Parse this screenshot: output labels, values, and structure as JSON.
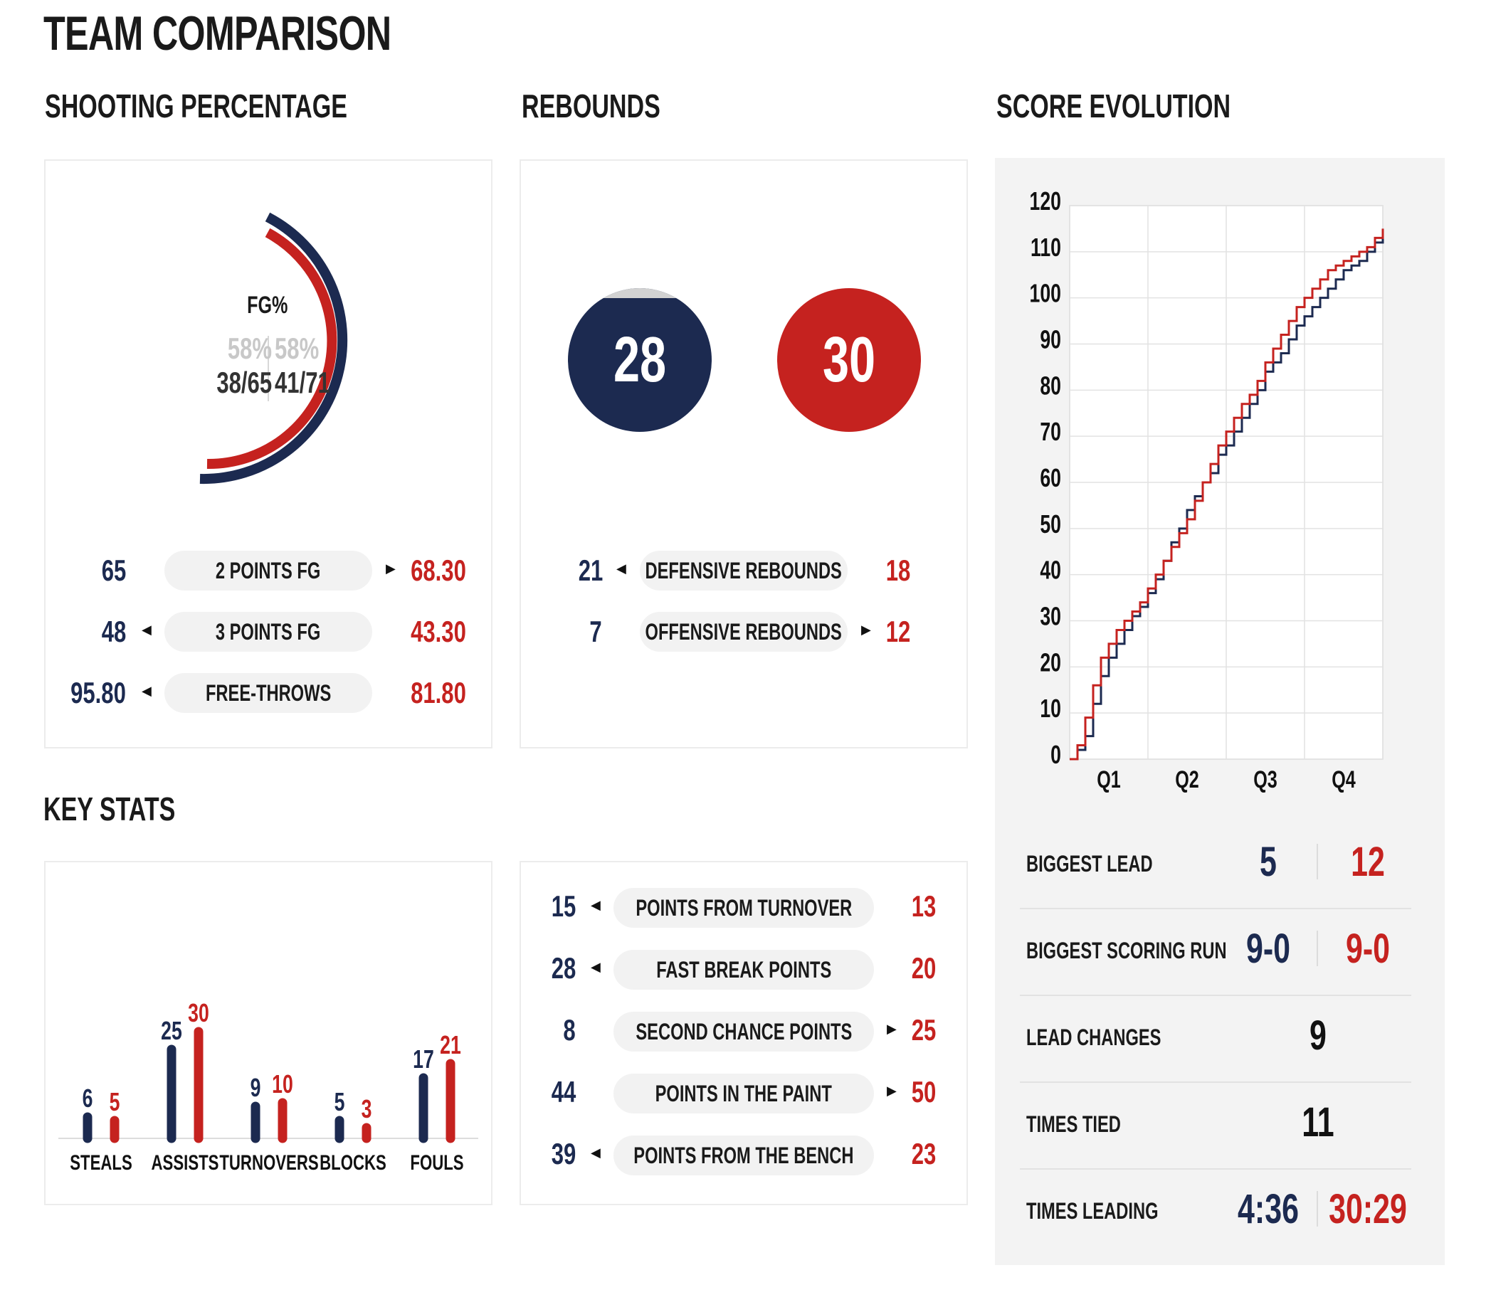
{
  "page": {
    "title": "TEAM COMPARISON"
  },
  "colors": {
    "home": "#1c2a50",
    "away": "#c5221f",
    "gray": "#c8c8c8"
  },
  "shooting": {
    "title": "SHOOTING PERCENTAGE",
    "fg_label": "FG%",
    "home_pct": "58%",
    "away_pct": "58%",
    "home_made": "38/65",
    "away_made": "41/71",
    "rows": [
      {
        "label": "2 POINTS FG",
        "home": "65",
        "away": "68.30",
        "leader": "away"
      },
      {
        "label": "3 POINTS FG",
        "home": "48",
        "away": "43.30",
        "leader": "home"
      },
      {
        "label": "FREE-THROWS",
        "home": "95.80",
        "away": "81.80",
        "leader": "home"
      }
    ]
  },
  "rebounds": {
    "title": "REBOUNDS",
    "home_total": "28",
    "away_total": "30",
    "rows": [
      {
        "label": "DEFENSIVE REBOUNDS",
        "home": "21",
        "away": "18",
        "leader": "home"
      },
      {
        "label": "OFFENSIVE REBOUNDS",
        "home": "7",
        "away": "12",
        "leader": "away"
      }
    ]
  },
  "key_stats": {
    "title": "KEY STATS",
    "points_rows": [
      {
        "label": "POINTS FROM TURNOVER",
        "home": "15",
        "away": "13",
        "leader": "home"
      },
      {
        "label": "FAST BREAK POINTS",
        "home": "28",
        "away": "20",
        "leader": "home"
      },
      {
        "label": "SECOND CHANCE POINTS",
        "home": "8",
        "away": "25",
        "leader": "away"
      },
      {
        "label": "POINTS IN THE PAINT",
        "home": "44",
        "away": "50",
        "leader": "away"
      },
      {
        "label": "POINTS FROM THE BENCH",
        "home": "39",
        "away": "23",
        "leader": "home"
      }
    ]
  },
  "score_evolution": {
    "title": "SCORE EVOLUTION",
    "stats": [
      {
        "label": "BIGGEST LEAD",
        "home": "5",
        "away": "12"
      },
      {
        "label": "BIGGEST SCORING RUN",
        "home": "9-0",
        "away": "9-0"
      },
      {
        "label": "LEAD CHANGES",
        "single": "9"
      },
      {
        "label": "TIMES TIED",
        "single": "11"
      },
      {
        "label": "TIMES LEADING",
        "home": "4:36",
        "away": "30:29"
      }
    ]
  },
  "chart_data": [
    {
      "type": "bar",
      "title": "KEY STATS",
      "categories": [
        "STEALS",
        "ASSISTS",
        "TURNOVERS",
        "BLOCKS",
        "FOULS"
      ],
      "series": [
        {
          "name": "home",
          "values": [
            6,
            25,
            9,
            5,
            17
          ]
        },
        {
          "name": "away",
          "values": [
            5,
            30,
            10,
            3,
            21
          ]
        }
      ]
    },
    {
      "type": "line",
      "title": "SCORE EVOLUTION",
      "xlabel": "",
      "ylabel": "",
      "x_ticks": [
        "Q1",
        "Q2",
        "Q3",
        "Q4"
      ],
      "x_range": [
        0,
        40
      ],
      "ylim": [
        0,
        120
      ],
      "y_ticks": [
        0,
        10,
        20,
        30,
        40,
        50,
        60,
        70,
        80,
        90,
        100,
        110,
        120
      ],
      "grid": true,
      "series": [
        {
          "name": "home",
          "points": [
            [
              0,
              0
            ],
            [
              1,
              2
            ],
            [
              2,
              5
            ],
            [
              3,
              12
            ],
            [
              4,
              18
            ],
            [
              5,
              22
            ],
            [
              6,
              25
            ],
            [
              7,
              28
            ],
            [
              8,
              31
            ],
            [
              9,
              33
            ],
            [
              10,
              36
            ],
            [
              11,
              39
            ],
            [
              12,
              43
            ],
            [
              13,
              47
            ],
            [
              14,
              50
            ],
            [
              15,
              54
            ],
            [
              16,
              57
            ],
            [
              17,
              60
            ],
            [
              18,
              62
            ],
            [
              19,
              66
            ],
            [
              20,
              68
            ],
            [
              21,
              71
            ],
            [
              22,
              74
            ],
            [
              23,
              77
            ],
            [
              24,
              80
            ],
            [
              25,
              84
            ],
            [
              26,
              86
            ],
            [
              27,
              88
            ],
            [
              28,
              91
            ],
            [
              29,
              94
            ],
            [
              30,
              96
            ],
            [
              31,
              98
            ],
            [
              32,
              100
            ],
            [
              33,
              102
            ],
            [
              34,
              104
            ],
            [
              35,
              106
            ],
            [
              36,
              107
            ],
            [
              37,
              108
            ],
            [
              38,
              110
            ],
            [
              39,
              112
            ],
            [
              40,
              113
            ]
          ]
        },
        {
          "name": "away",
          "points": [
            [
              0,
              0
            ],
            [
              1,
              3
            ],
            [
              2,
              9
            ],
            [
              3,
              16
            ],
            [
              4,
              22
            ],
            [
              5,
              25
            ],
            [
              6,
              28
            ],
            [
              7,
              30
            ],
            [
              8,
              32
            ],
            [
              9,
              34
            ],
            [
              10,
              37
            ],
            [
              11,
              40
            ],
            [
              12,
              43
            ],
            [
              13,
              46
            ],
            [
              14,
              49
            ],
            [
              15,
              52
            ],
            [
              16,
              56
            ],
            [
              17,
              60
            ],
            [
              18,
              64
            ],
            [
              19,
              68
            ],
            [
              20,
              71
            ],
            [
              21,
              74
            ],
            [
              22,
              77
            ],
            [
              23,
              79
            ],
            [
              24,
              82
            ],
            [
              25,
              86
            ],
            [
              26,
              89
            ],
            [
              27,
              92
            ],
            [
              28,
              95
            ],
            [
              29,
              98
            ],
            [
              30,
              100
            ],
            [
              31,
              102
            ],
            [
              32,
              104
            ],
            [
              33,
              106
            ],
            [
              34,
              107
            ],
            [
              35,
              108
            ],
            [
              36,
              109
            ],
            [
              37,
              110
            ],
            [
              38,
              111
            ],
            [
              39,
              113
            ],
            [
              40,
              115
            ]
          ]
        }
      ]
    }
  ]
}
